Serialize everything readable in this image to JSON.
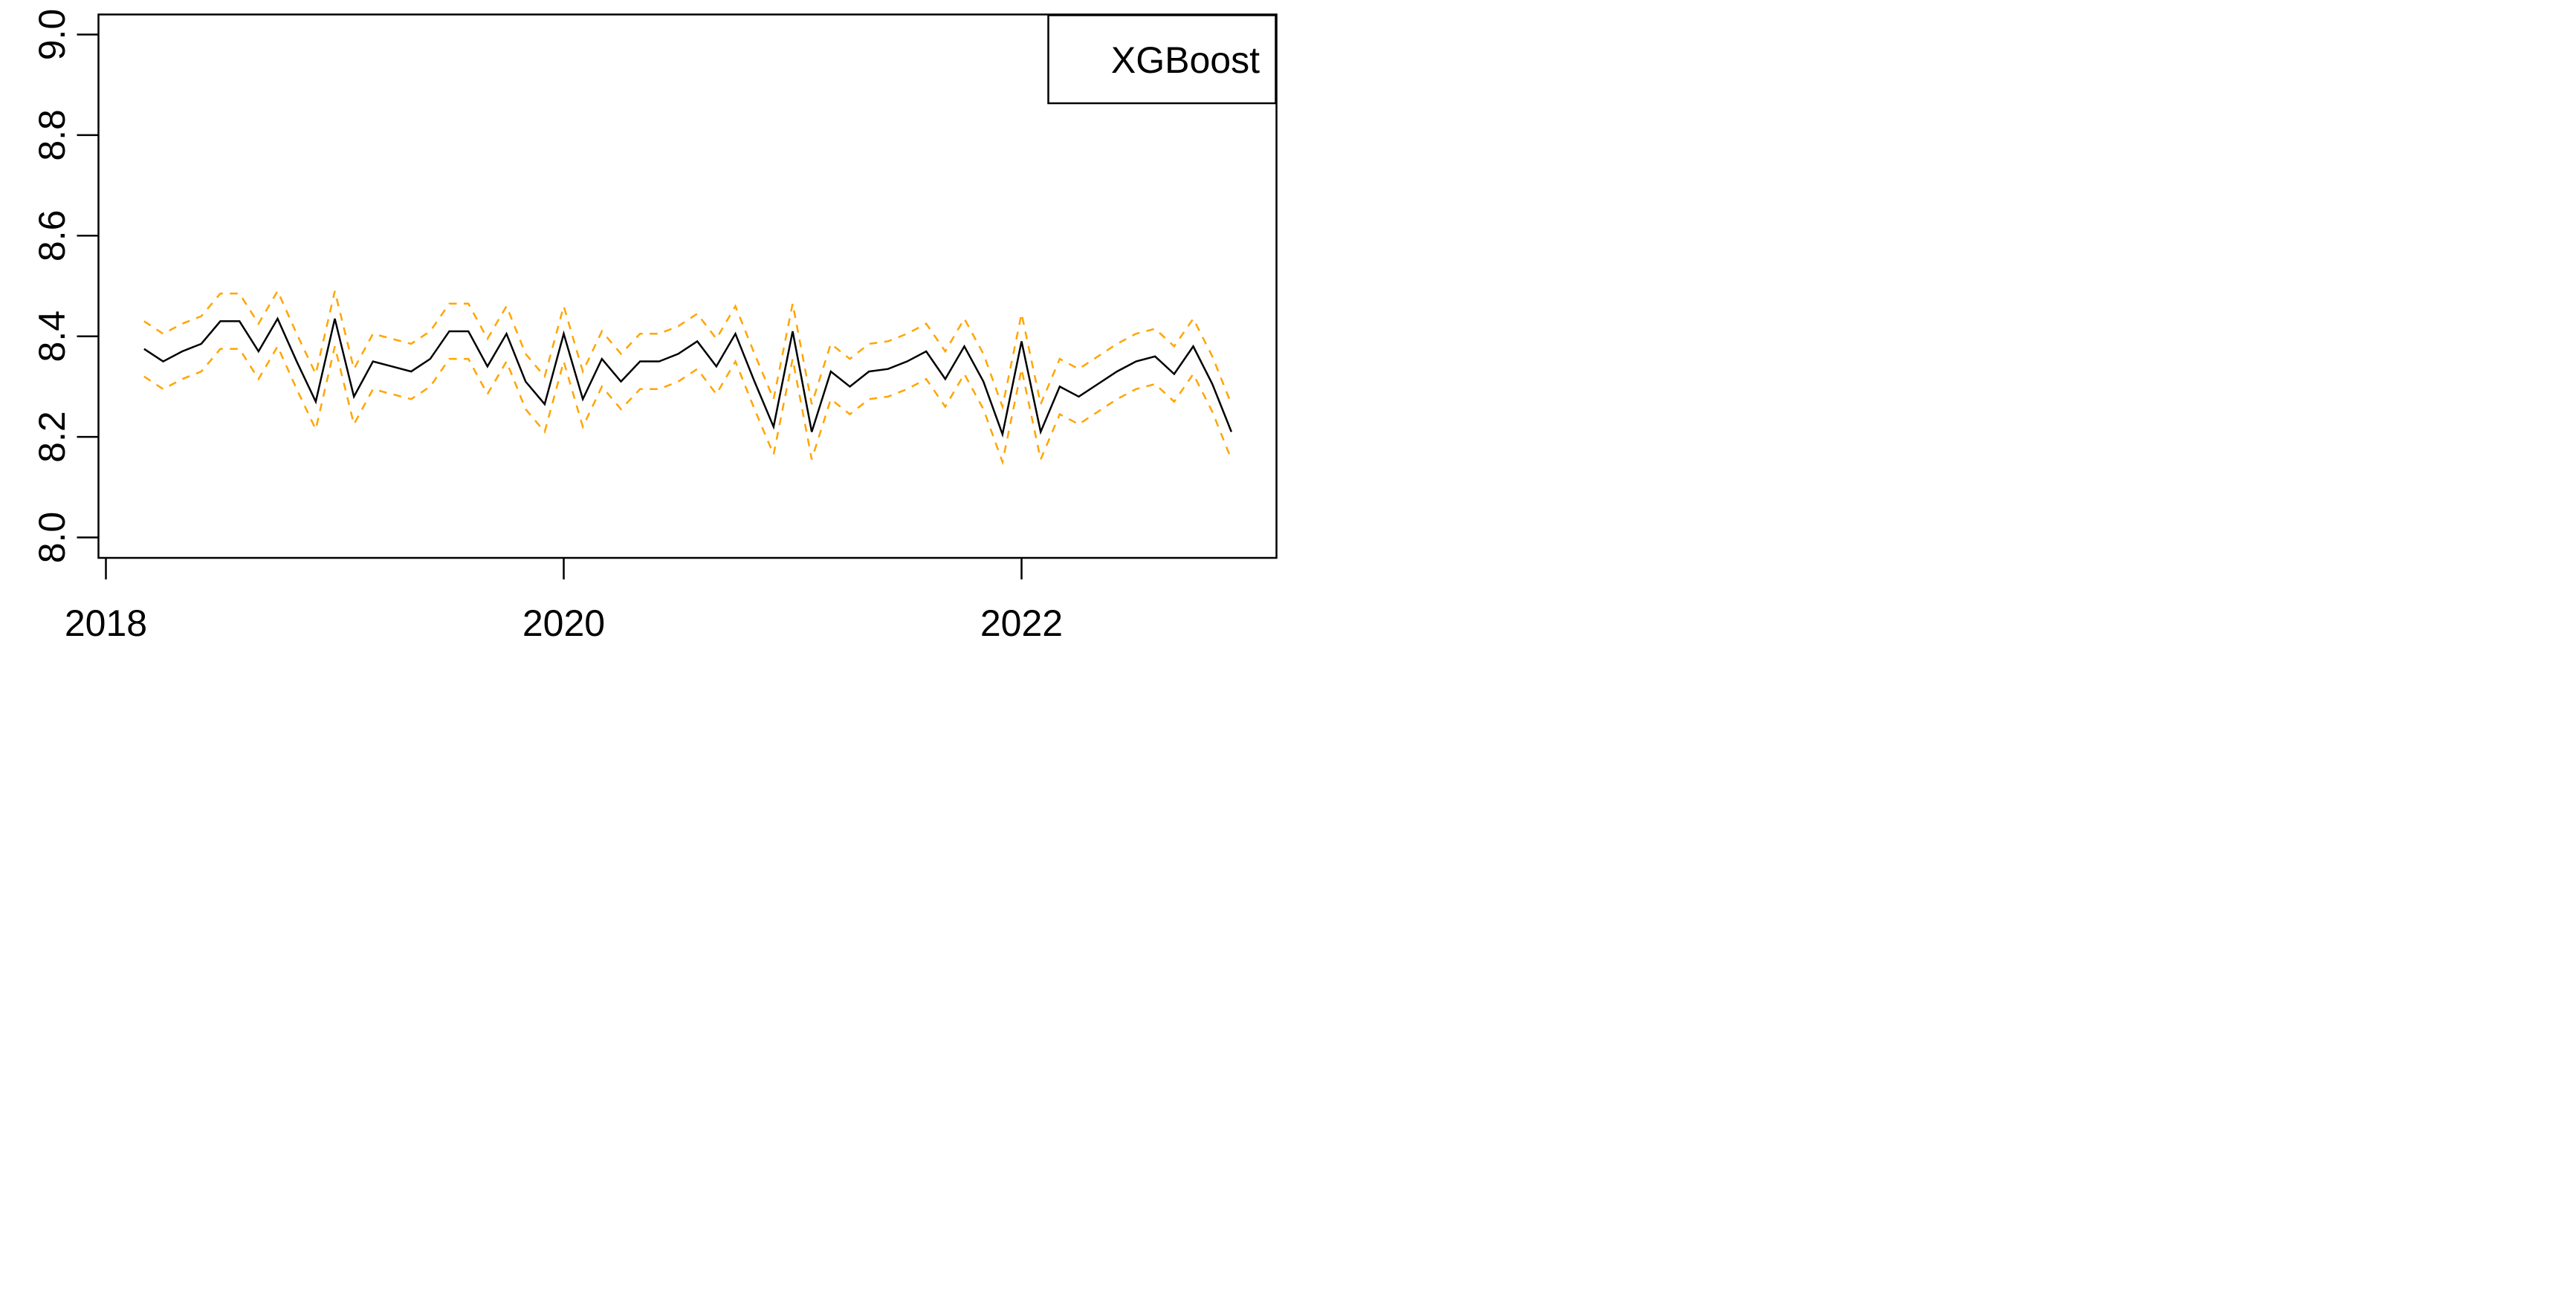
{
  "chart_data": {
    "type": "line",
    "title": "",
    "xlabel": "",
    "ylabel": "",
    "legend": {
      "label": "XGBoost",
      "position": "topright",
      "border": true
    },
    "x_axis": {
      "tick_values": [
        2018,
        2020,
        2022
      ],
      "tick_labels": [
        "2018",
        "2020",
        "2022"
      ],
      "range": [
        2017.91,
        2023.12
      ]
    },
    "y_axis": {
      "tick_values": [
        8.0,
        8.2,
        8.4,
        8.6,
        8.8,
        9.0
      ],
      "tick_labels": [
        "8.0",
        "8.2",
        "8.4",
        "8.6",
        "8.8",
        "9.0"
      ],
      "range": [
        7.99,
        9.04
      ],
      "labels_rotated": true
    },
    "grid": "off",
    "x_start_decimal_year": 2018.1667,
    "x_step_years": 0.083333,
    "colors": {
      "mean_line": "#000000",
      "confidence_band": "#FFA500"
    },
    "series": [
      {
        "name": "prediction-mean",
        "style": "solid",
        "color": "#000000",
        "values": [
          8.375,
          8.35,
          8.37,
          8.385,
          8.43,
          8.43,
          8.37,
          8.435,
          8.35,
          8.27,
          8.435,
          8.28,
          8.35,
          8.34,
          8.33,
          8.355,
          8.41,
          8.41,
          8.34,
          8.405,
          8.31,
          8.265,
          8.405,
          8.275,
          8.355,
          8.31,
          8.35,
          8.35,
          8.365,
          8.39,
          8.34,
          8.405,
          8.31,
          8.22,
          8.41,
          8.21,
          8.33,
          8.3,
          8.33,
          8.335,
          8.35,
          8.37,
          8.315,
          8.38,
          8.31,
          8.205,
          8.39,
          8.21,
          8.3,
          8.28,
          8.305,
          8.33,
          8.35,
          8.36,
          8.325,
          8.38,
          8.305,
          8.21
        ]
      },
      {
        "name": "upper-confidence-band",
        "style": "dashed",
        "color": "#FFA500",
        "values": [
          8.43,
          8.405,
          8.425,
          8.44,
          8.485,
          8.485,
          8.425,
          8.49,
          8.405,
          8.325,
          8.49,
          8.335,
          8.405,
          8.395,
          8.385,
          8.41,
          8.465,
          8.465,
          8.395,
          8.46,
          8.365,
          8.32,
          8.46,
          8.33,
          8.41,
          8.365,
          8.405,
          8.405,
          8.42,
          8.445,
          8.395,
          8.46,
          8.365,
          8.275,
          8.465,
          8.265,
          8.385,
          8.355,
          8.385,
          8.39,
          8.405,
          8.425,
          8.37,
          8.435,
          8.365,
          8.26,
          8.445,
          8.265,
          8.355,
          8.335,
          8.36,
          8.385,
          8.405,
          8.415,
          8.38,
          8.435,
          8.36,
          8.265
        ]
      },
      {
        "name": "lower-confidence-band",
        "style": "dashed",
        "color": "#FFA500",
        "values": [
          8.32,
          8.295,
          8.315,
          8.33,
          8.375,
          8.375,
          8.315,
          8.38,
          8.295,
          8.215,
          8.38,
          8.225,
          8.295,
          8.285,
          8.275,
          8.3,
          8.355,
          8.355,
          8.285,
          8.35,
          8.255,
          8.21,
          8.35,
          8.22,
          8.3,
          8.255,
          8.295,
          8.295,
          8.31,
          8.335,
          8.285,
          8.35,
          8.255,
          8.165,
          8.355,
          8.155,
          8.275,
          8.245,
          8.275,
          8.28,
          8.295,
          8.315,
          8.26,
          8.325,
          8.255,
          8.15,
          8.335,
          8.155,
          8.245,
          8.225,
          8.25,
          8.275,
          8.295,
          8.305,
          8.27,
          8.325,
          8.25,
          8.155
        ]
      }
    ]
  }
}
